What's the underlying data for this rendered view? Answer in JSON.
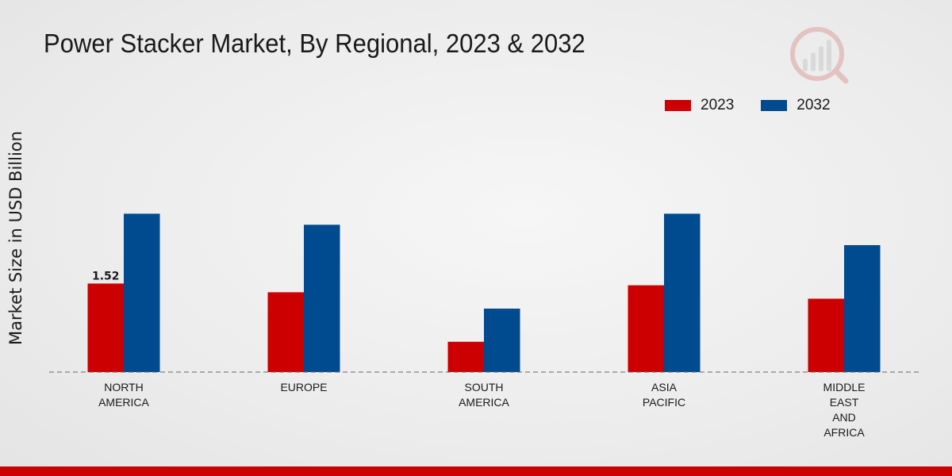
{
  "chart_data": {
    "type": "bar",
    "title": "Power Stacker Market, By Regional, 2023 & 2032",
    "xlabel": "",
    "ylabel": "Market Size in USD Billion",
    "categories": [
      [
        "NORTH",
        "AMERICA"
      ],
      [
        "EUROPE"
      ],
      [
        "SOUTH",
        "AMERICA"
      ],
      [
        "ASIA",
        "PACIFIC"
      ],
      [
        "MIDDLE",
        "EAST",
        "AND",
        "AFRICA"
      ]
    ],
    "series": [
      {
        "name": "2023",
        "color": "#cc0000",
        "values": [
          1.52,
          1.37,
          0.52,
          1.49,
          1.26
        ]
      },
      {
        "name": "2032",
        "color": "#004a8f",
        "values": [
          2.72,
          2.53,
          1.09,
          2.72,
          2.18
        ]
      }
    ],
    "data_labels": [
      {
        "series": 0,
        "index": 0,
        "text": "1.52"
      }
    ],
    "ylim": [
      0,
      5.0
    ],
    "grid": false,
    "legend_position": "top-right"
  }
}
